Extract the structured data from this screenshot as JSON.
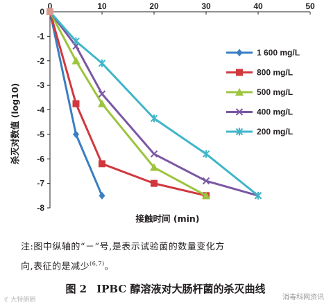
{
  "chart_data": {
    "type": "line",
    "xlabel": "接触时间 (min)",
    "ylabel": "杀灭对数值 (log10)",
    "xlim": [
      0,
      50
    ],
    "ylim": [
      -8,
      0
    ],
    "x_ticks": [
      0,
      10,
      20,
      30,
      40,
      50
    ],
    "y_ticks": [
      0,
      -1,
      -2,
      -3,
      -4,
      -5,
      -6,
      -7,
      -8
    ],
    "grid": false,
    "legend_position": "right",
    "series": [
      {
        "name": "1 600 mg/L",
        "color": "#3a7fc1",
        "marker": "diamond",
        "x": [
          0,
          5,
          10
        ],
        "y": [
          0,
          -5.0,
          -7.5
        ]
      },
      {
        "name": "800 mg/L",
        "color": "#d0383e",
        "marker": "square",
        "x": [
          0,
          5,
          10,
          20,
          30
        ],
        "y": [
          0,
          -3.75,
          -6.2,
          -7.0,
          -7.5
        ]
      },
      {
        "name": "500 mg/L",
        "color": "#9dc43f",
        "marker": "triangle",
        "x": [
          0,
          5,
          10,
          20,
          30
        ],
        "y": [
          0,
          -2.0,
          -3.75,
          -6.35,
          -7.5
        ]
      },
      {
        "name": "400 mg/L",
        "color": "#7a56a3",
        "marker": "x",
        "x": [
          0,
          5,
          10,
          20,
          30,
          40
        ],
        "y": [
          0,
          -1.4,
          -3.35,
          -5.8,
          -6.9,
          -7.5
        ]
      },
      {
        "name": "200 mg/L",
        "color": "#3fb5c9",
        "marker": "star",
        "x": [
          0,
          5,
          10,
          20,
          30,
          40
        ],
        "y": [
          0,
          -1.2,
          -2.1,
          -4.35,
          -5.8,
          -7.5
        ]
      }
    ]
  },
  "note": {
    "line1": "注:图中纵轴的“－”号,是表示试验菌的数量变化方",
    "line2": "向,表征的是减少",
    "ref": "(6,7)",
    "line2_end": "。"
  },
  "caption": {
    "fig_num": "图 2",
    "title": "IPBC 醇溶液对大肠杆菌的杀灭曲线"
  },
  "watermarks": {
    "left": "ℭ 大特朗朗",
    "right": "消毒科网资讯"
  }
}
